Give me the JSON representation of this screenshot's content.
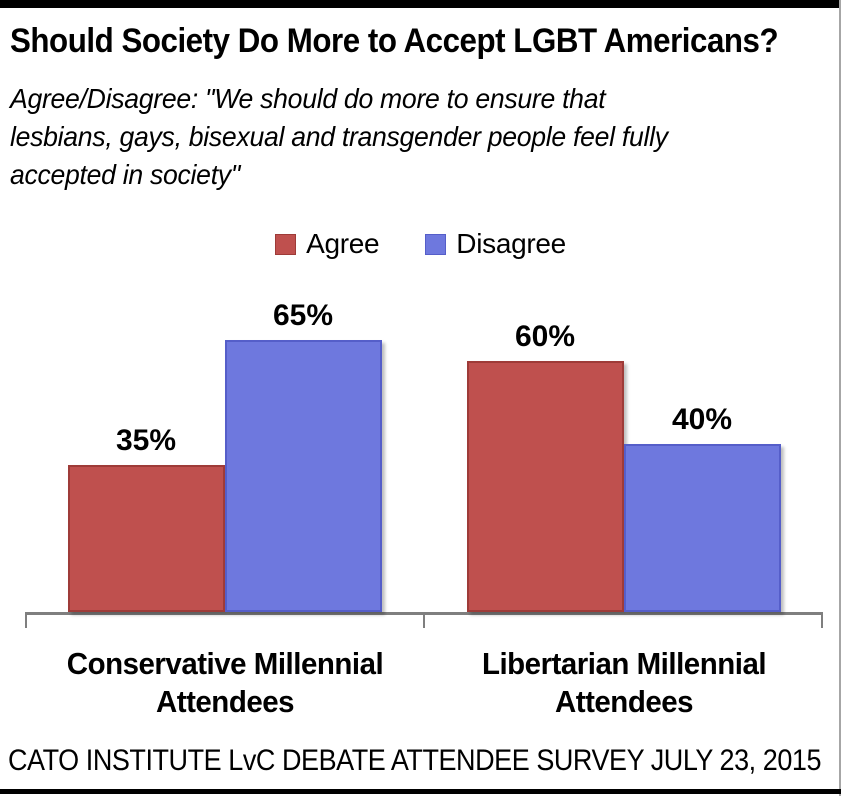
{
  "header": {
    "title": "Should Society Do More to Accept LGBT Americans?",
    "subtitle_lines": [
      "Agree/Disagree: \"We should do more to ensure that",
      "lesbians, gays, bisexual and transgender people feel fully",
      "accepted in society\""
    ]
  },
  "footer": {
    "source": "CATO INSTITUTE LvC DEBATE ATTENDEE SURVEY JULY 23, 2015"
  },
  "colors": {
    "agree_fill": "#BF504E",
    "agree_border": "#9E3B38",
    "disagree_fill": "#6E78DE",
    "disagree_border": "#555EC9",
    "axis": "#7F7F7F",
    "text": "#000000",
    "page_border": "#000000"
  },
  "chart_data": {
    "type": "bar",
    "title": "Should Society Do More to Accept LGBT Americans?",
    "subtitle": "Agree/Disagree: \"We should do more to ensure that lesbians, gays, bisexual and transgender people feel fully accepted in society\"",
    "categories": [
      "Conservative Millennial Attendees",
      "Libertarian Millennial Attendees"
    ],
    "series": [
      {
        "name": "Agree",
        "values": [
          35,
          60
        ],
        "fill": "#BF504E",
        "border": "#9E3B38"
      },
      {
        "name": "Disagree",
        "values": [
          65,
          40
        ],
        "fill": "#6E78DE",
        "border": "#555EC9"
      }
    ],
    "data_labels": [
      [
        "35%",
        "60%"
      ],
      [
        "65%",
        "40%"
      ]
    ],
    "value_suffix": "%",
    "ylim": [
      0,
      100
    ],
    "grid": false,
    "axis_ticks": 3,
    "legend_position": "top",
    "source": "CATO INSTITUTE LvC DEBATE ATTENDEE SURVEY JULY 23, 2015"
  }
}
